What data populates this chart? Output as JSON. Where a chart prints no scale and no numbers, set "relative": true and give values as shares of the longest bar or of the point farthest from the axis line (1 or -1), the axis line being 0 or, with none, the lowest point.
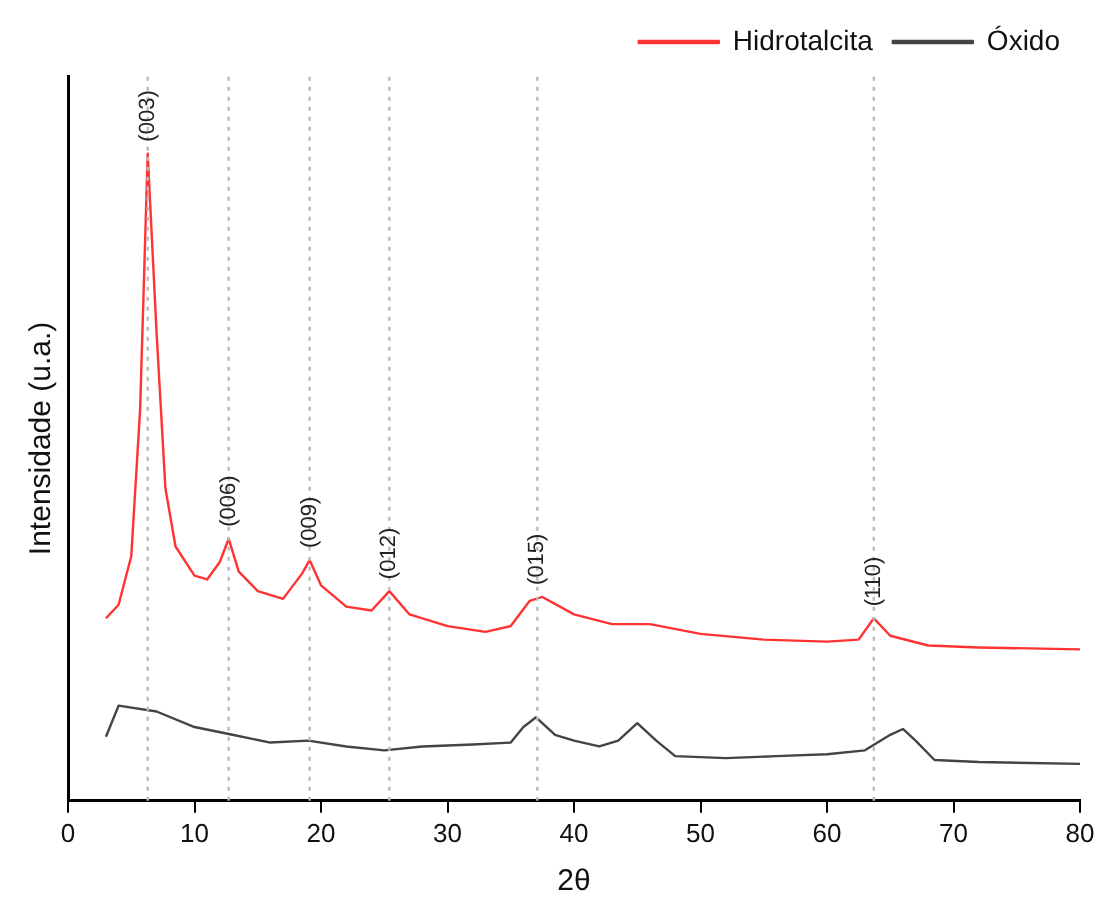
{
  "chart_data": {
    "type": "line",
    "relative": true,
    "xlabel": "2θ",
    "ylabel": "Intensidade (u.a.)",
    "xlim": [
      0,
      80
    ],
    "xticks": [
      0,
      10,
      20,
      30,
      40,
      50,
      60,
      70,
      80
    ],
    "grid": false,
    "legend": "top right",
    "marker": "none",
    "line_style": "solid",
    "series": [
      {
        "name": "Hidrotalcita",
        "color": "#ff3333",
        "x": [
          3,
          4,
          5,
          5.7,
          6.3,
          7,
          7.7,
          8.5,
          10,
          11,
          12,
          12.7,
          13.5,
          15,
          17,
          18.5,
          19.1,
          20,
          22,
          24,
          25.4,
          27,
          30,
          33,
          35,
          36.5,
          37.5,
          40,
          43,
          46,
          50,
          55,
          60,
          62.5,
          63.7,
          65,
          68,
          72,
          80
        ],
        "values": [
          0.282,
          0.303,
          0.378,
          0.604,
          1.0,
          0.724,
          0.483,
          0.393,
          0.348,
          0.342,
          0.369,
          0.405,
          0.354,
          0.324,
          0.312,
          0.351,
          0.372,
          0.333,
          0.3,
          0.294,
          0.324,
          0.288,
          0.27,
          0.261,
          0.27,
          0.309,
          0.315,
          0.288,
          0.273,
          0.273,
          0.258,
          0.249,
          0.246,
          0.249,
          0.282,
          0.255,
          0.24,
          0.237,
          0.234
        ]
      },
      {
        "name": "Óxido",
        "color": "#444444",
        "x": [
          3,
          4,
          7,
          10,
          13,
          16,
          19,
          22,
          25,
          28,
          32,
          35,
          36,
          37,
          38.5,
          40,
          42,
          43.5,
          45,
          46.5,
          48,
          52,
          56,
          60,
          63,
          65,
          66,
          67,
          68.5,
          72,
          80
        ],
        "values": [
          0.099,
          0.147,
          0.138,
          0.114,
          0.102,
          0.09,
          0.093,
          0.084,
          0.078,
          0.084,
          0.087,
          0.09,
          0.114,
          0.129,
          0.102,
          0.093,
          0.084,
          0.093,
          0.12,
          0.093,
          0.069,
          0.066,
          0.069,
          0.072,
          0.078,
          0.102,
          0.111,
          0.093,
          0.063,
          0.06,
          0.057
        ]
      }
    ],
    "ref_lines": [
      {
        "axis": "x",
        "value": 6.3,
        "color": "#bbbbbb",
        "line_style": "dotted"
      },
      {
        "axis": "x",
        "value": 12.7,
        "color": "#bbbbbb",
        "line_style": "dotted"
      },
      {
        "axis": "x",
        "value": 19.1,
        "color": "#bbbbbb",
        "line_style": "dotted"
      },
      {
        "axis": "x",
        "value": 25.4,
        "color": "#bbbbbb",
        "line_style": "dotted"
      },
      {
        "axis": "x",
        "value": 37.1,
        "color": "#bbbbbb",
        "line_style": "dotted"
      },
      {
        "axis": "x",
        "value": 63.7,
        "color": "#bbbbbb",
        "line_style": "dotted"
      }
    ],
    "annotations": [
      {
        "text": "(003)",
        "x": 6.3,
        "y": 1.0
      },
      {
        "text": "(006)",
        "x": 12.7,
        "y": 0.405
      },
      {
        "text": "(009)",
        "x": 19.1,
        "y": 0.372
      },
      {
        "text": "(012)",
        "x": 25.4,
        "y": 0.324
      },
      {
        "text": "(015)",
        "x": 37.1,
        "y": 0.315
      },
      {
        "text": "(110)",
        "x": 63.7,
        "y": 0.282
      }
    ]
  }
}
